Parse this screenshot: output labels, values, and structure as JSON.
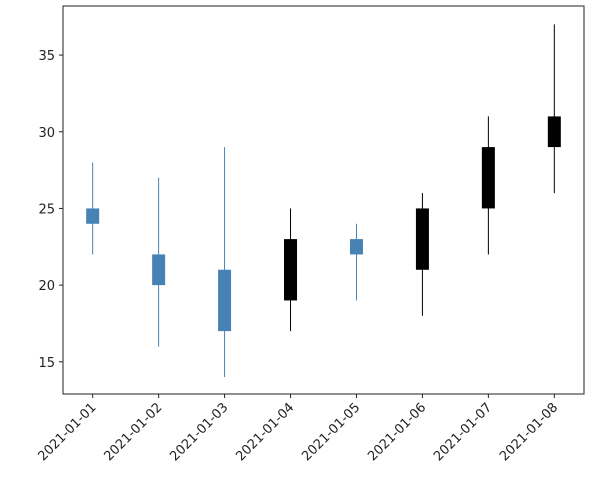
{
  "chart_data": {
    "type": "candlestick",
    "x": [
      "2021-01-01",
      "2021-01-02",
      "2021-01-03",
      "2021-01-04",
      "2021-01-05",
      "2021-01-06",
      "2021-01-07",
      "2021-01-08"
    ],
    "open": [
      25,
      22,
      21,
      19,
      23,
      21,
      25,
      29
    ],
    "high": [
      28,
      27,
      29,
      25,
      24,
      26,
      31,
      37
    ],
    "low": [
      22,
      16,
      14,
      17,
      19,
      18,
      22,
      26
    ],
    "close": [
      24,
      20,
      17,
      23,
      22,
      25,
      29,
      31
    ],
    "up_color": "#000000",
    "down_color": "#4682b4",
    "ylim": [
      12.9,
      38.2
    ],
    "yticks": [
      15,
      20,
      25,
      30,
      35
    ]
  }
}
